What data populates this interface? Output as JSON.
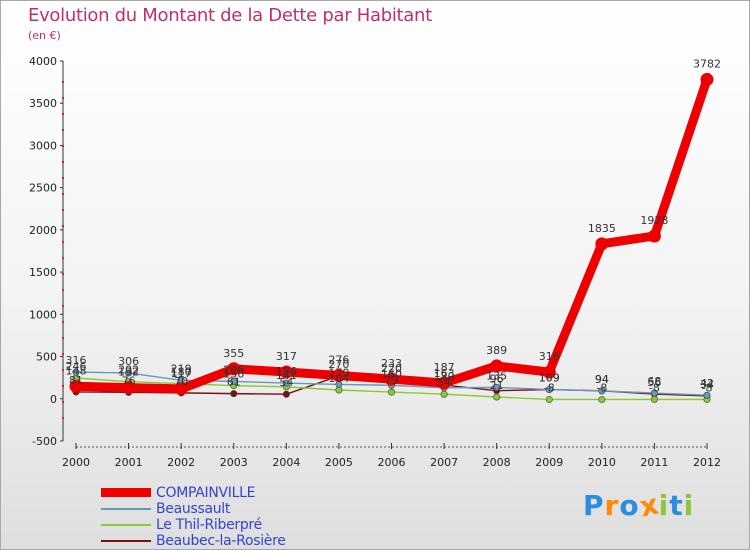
{
  "chart_data": {
    "type": "line",
    "title": "Evolution du Montant de la Dette par Habitant",
    "unit": "(en €)",
    "xlabel": "",
    "ylabel": "",
    "x": [
      "2000",
      "2001",
      "2002",
      "2003",
      "2004",
      "2005",
      "2006",
      "2007",
      "2008",
      "2009",
      "2010",
      "2011",
      "2012"
    ],
    "ylim": [
      -500,
      4000
    ],
    "yticks": [
      -500,
      0,
      500,
      1000,
      1500,
      2000,
      2500,
      3000,
      3500,
      4000
    ],
    "series": [
      {
        "name": "COMPAINVILLE",
        "color": "#ee0000",
        "values": [
          148,
          132,
          117,
          355,
          317,
          276,
          233,
          187,
          389,
          316,
          1835,
          1928,
          3782
        ]
      },
      {
        "name": "Beaussault",
        "color": "#6699bb",
        "values": [
          316,
          306,
          219,
          206,
          186,
          170,
          160,
          130,
          135,
          109,
          94,
          68,
          42
        ]
      },
      {
        "name": "Le Thil-Riberpré",
        "color": "#88cc33",
        "values": [
          246,
          202,
          180,
          156,
          141,
          104,
          79,
          54,
          21,
          -8,
          -8,
          -8,
          -8
        ]
      },
      {
        "name": "Beaubec-la-Rosière",
        "color": "#771111",
        "values": [
          81,
          76,
          70,
          61,
          54,
          270,
          220,
          163,
          96,
          109,
          94,
          56,
          34
        ]
      }
    ]
  },
  "legend": {
    "items": [
      {
        "label": "COMPAINVILLE",
        "color": "#ee0000"
      },
      {
        "label": "Beaussault",
        "color": "#6699bb"
      },
      {
        "label": "Le Thil-Riberpré",
        "color": "#88cc33"
      },
      {
        "label": "Beaubec-la-Rosière",
        "color": "#771111"
      }
    ]
  },
  "logo": {
    "letters": [
      "P",
      "r",
      "o",
      "x",
      "i",
      "t",
      "i"
    ],
    "colors": [
      "#2a8de0",
      "#ff8a00",
      "#2a8de0",
      "#ff8a00",
      "#8cc63f",
      "#2a8de0",
      "#8cc63f"
    ]
  }
}
